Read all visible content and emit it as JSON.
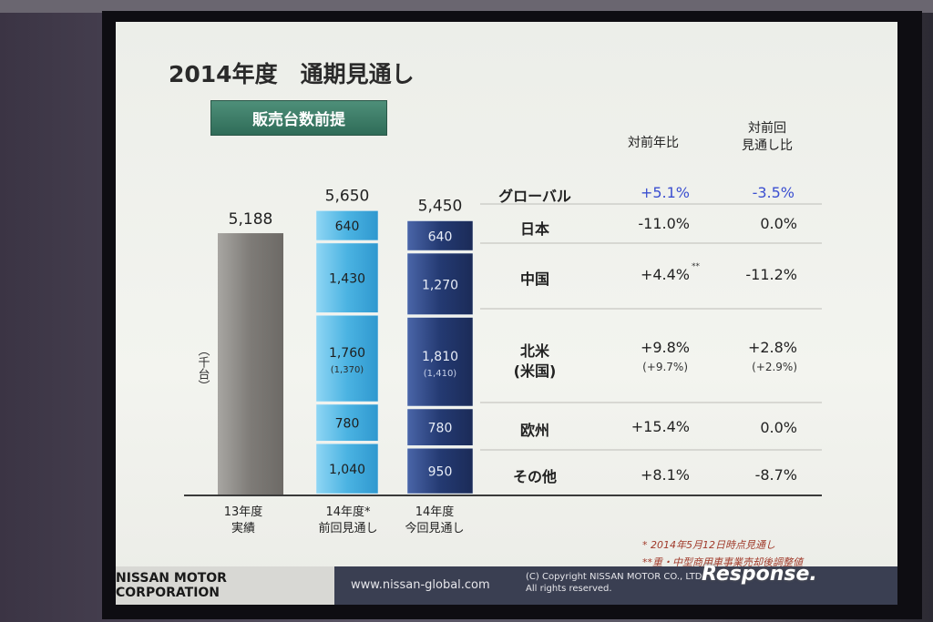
{
  "slide": {
    "title": "2014年度　通期見通し",
    "badge": "販売台数前提",
    "unit": "（千台）",
    "col_headers": {
      "yoy": [
        "対前年比"
      ],
      "vs_prev": [
        "対前回",
        "見通し比"
      ]
    },
    "rows": [
      {
        "label": "グローバル",
        "yoy": "+5.1%",
        "vs_prev": "-3.5%"
      },
      {
        "label": "日本",
        "yoy": "-11.0%",
        "vs_prev": "0.0%"
      },
      {
        "label": "中国",
        "yoy": "+4.4%",
        "yoy_mark": "**",
        "vs_prev": "-11.2%"
      },
      {
        "label": "北米",
        "label2": "(米国)",
        "yoy": "+9.8%",
        "yoy_sub": "(+9.7%)",
        "vs_prev": "+2.8%",
        "vs_prev_sub": "(+2.9%)"
      },
      {
        "label": "欧州",
        "yoy": "+15.4%",
        "vs_prev": "0.0%"
      },
      {
        "label": "その他",
        "yoy": "+8.1%",
        "vs_prev": "-8.7%"
      }
    ],
    "footnotes": [
      "* 2014年5月12日時点見通し",
      "**重・中型商用車事業売却後調整値"
    ],
    "colors": {
      "badge": "#3a7a64",
      "highlight": "#3b4fd0",
      "footer": "#3a3f52"
    }
  },
  "footer": {
    "company": "NISSAN MOTOR CORPORATION",
    "url": "www.nissan-global.com",
    "copyright_line1": "(C) Copyright NISSAN MOTOR CO., LTD.",
    "copyright_line2": "All rights reserved."
  },
  "watermark": "Response.",
  "chart_data": {
    "type": "bar",
    "categories": [
      "13年度実績",
      "14年度*前回見通し",
      "14年度今回見通し"
    ],
    "category_lines": [
      [
        "13年度",
        "実績"
      ],
      [
        "14年度*",
        "前回見通し"
      ],
      [
        "14年度",
        "今回見通し"
      ]
    ],
    "totals": [
      "5,188",
      "5,650",
      "5,450"
    ],
    "total_values": [
      5188,
      5650,
      5450
    ],
    "segments": [
      "日本",
      "中国",
      "北米",
      "欧州",
      "その他"
    ],
    "series": [
      {
        "name": "日本",
        "values": [
          null,
          640,
          640
        ],
        "labels": [
          "",
          "640",
          "640"
        ]
      },
      {
        "name": "中国",
        "values": [
          null,
          1430,
          1270
        ],
        "labels": [
          "",
          "1,430",
          "1,270"
        ]
      },
      {
        "name": "北米",
        "values": [
          null,
          1760,
          1810
        ],
        "labels": [
          "",
          "1,760",
          "1,810"
        ],
        "sub_labels": [
          "",
          "(1,370)",
          "(1,410)"
        ]
      },
      {
        "name": "欧州",
        "values": [
          null,
          780,
          780
        ],
        "labels": [
          "",
          "780",
          "780"
        ]
      },
      {
        "name": "その他",
        "values": [
          null,
          1040,
          950
        ],
        "labels": [
          "",
          "1,040",
          "950"
        ]
      }
    ],
    "ylabel": "（千台）",
    "colors": {
      "actual": "#8c8a86",
      "prev": "#57b8e6",
      "current": "#2b3f78"
    }
  }
}
